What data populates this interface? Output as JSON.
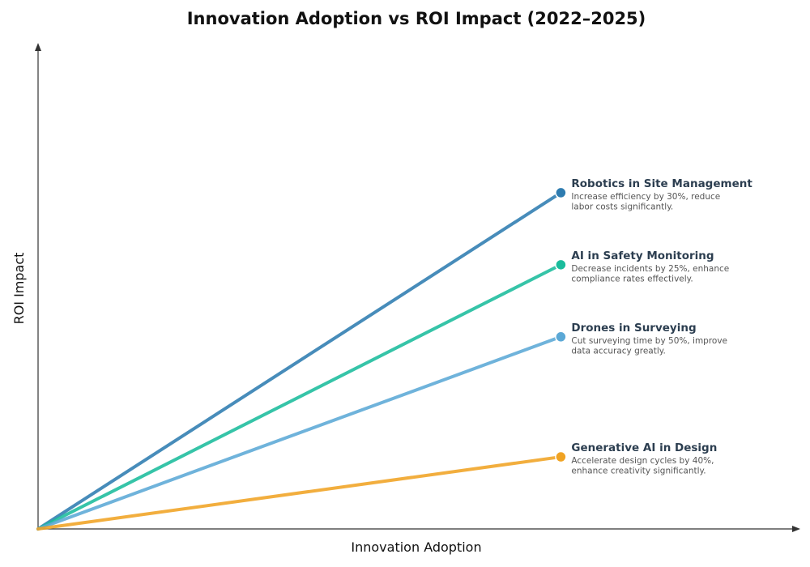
{
  "chart_data": {
    "type": "line",
    "title": "Innovation Adoption vs ROI Impact (2022–2025)",
    "xlabel": "Innovation Adoption",
    "ylabel": "ROI Impact",
    "ticks_shown": false,
    "grid": false,
    "legend": "direct labels at line ends",
    "series": [
      {
        "name": "Robotics in Site Management",
        "description_lines": [
          "Increase efficiency by 30%, reduce",
          "labor costs significantly."
        ],
        "color": "#2e7cb0",
        "values": [
          0,
          0.7
        ]
      },
      {
        "name": "AI in Safety Monitoring",
        "description_lines": [
          "Decrease incidents by 25%, enhance",
          "compliance rates effectively."
        ],
        "color": "#1abc9c",
        "values": [
          0,
          0.55
        ]
      },
      {
        "name": "Drones in Surveying",
        "description_lines": [
          "Cut surveying time by 50%, improve",
          "data accuracy greatly."
        ],
        "color": "#5ba8d6",
        "values": [
          0,
          0.4
        ]
      },
      {
        "name": "Generative AI in Design",
        "description_lines": [
          "Accelerate design cycles by 40%,",
          "enhance creativity significantly."
        ],
        "color": "#f0a323",
        "values": [
          0,
          0.15
        ]
      }
    ],
    "x": [
      0,
      0.7
    ],
    "xlim": [
      0,
      1
    ],
    "ylim": [
      0,
      1
    ]
  }
}
